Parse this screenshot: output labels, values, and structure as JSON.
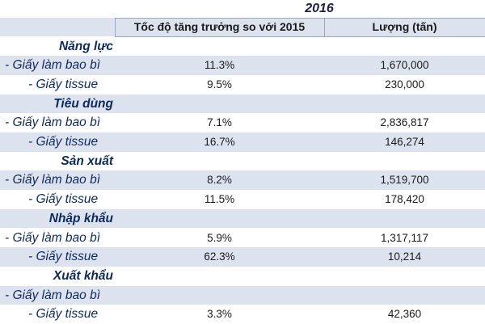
{
  "year": "2016",
  "headers": {
    "growth": "Tốc độ tăng trưởng so với 2015",
    "volume": "Lượng (tấn)"
  },
  "rows": [
    {
      "type": "group",
      "label": "Năng lực",
      "growth": "",
      "volume": ""
    },
    {
      "type": "item",
      "label": "- Giấy làm bao bì",
      "growth": "11.3%",
      "volume": "1,670,000"
    },
    {
      "type": "item",
      "label": "- Giấy tissue",
      "growth": "9.5%",
      "volume": "230,000"
    },
    {
      "type": "group",
      "label": "Tiêu dùng",
      "growth": "",
      "volume": ""
    },
    {
      "type": "item",
      "label": "- Giấy làm bao bì",
      "growth": "7.1%",
      "volume": "2,836,817"
    },
    {
      "type": "item",
      "label": "- Giấy tissue",
      "growth": "16.7%",
      "volume": "146,274"
    },
    {
      "type": "group",
      "label": "Sản xuất",
      "growth": "",
      "volume": ""
    },
    {
      "type": "item",
      "label": "- Giấy làm bao bì",
      "growth": "8.2%",
      "volume": "1,519,700"
    },
    {
      "type": "item",
      "label": "- Giấy tissue",
      "growth": "11.5%",
      "volume": "178,420"
    },
    {
      "type": "group",
      "label": "Nhập khẩu",
      "growth": "",
      "volume": ""
    },
    {
      "type": "item",
      "label": "- Giấy làm bao bì",
      "growth": "5.9%",
      "volume": "1,317,117"
    },
    {
      "type": "item",
      "label": "- Giấy tissue",
      "growth": "62.3%",
      "volume": "10,214"
    },
    {
      "type": "group",
      "label": "Xuất khẩu",
      "growth": "",
      "volume": ""
    },
    {
      "type": "item",
      "label": "- Giấy làm bao bì",
      "growth": "",
      "volume": ""
    },
    {
      "type": "item",
      "label": "- Giấy tissue",
      "growth": "3.3%",
      "volume": "42,360"
    }
  ]
}
